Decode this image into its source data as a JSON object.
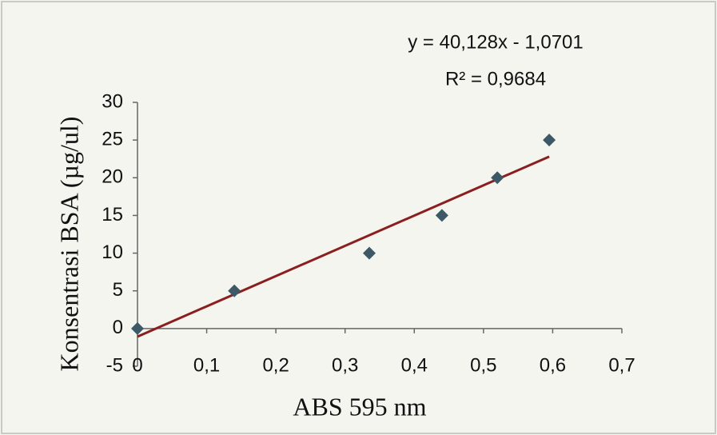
{
  "chart_data": {
    "type": "scatter",
    "x_label": "ABS 595 nm",
    "y_label": "Konsentrasi BSA (µg/ul)",
    "series": [
      {
        "color": "#3d5867",
        "x": [
          0,
          0.14,
          0.335,
          0.44,
          0.52,
          0.595
        ],
        "values": [
          0,
          5,
          10,
          15,
          20,
          25
        ]
      }
    ],
    "trendline": {
      "slope": 40.128,
      "intercept": -1.0701,
      "xlim": [
        0,
        0.595
      ],
      "color": "#8b1e1e",
      "equation": "y = 40,128x - 1,0701",
      "r2_label": "R² = 0,9684"
    },
    "xlim": [
      0,
      0.7
    ],
    "xticks": [
      0,
      {
        "value": 0.1,
        "label": "0,1"
      },
      {
        "value": 0.2,
        "label": "0,2"
      },
      {
        "value": 0.3,
        "label": "0,3"
      },
      {
        "value": 0.4,
        "label": "0,4"
      },
      {
        "value": 0.5,
        "label": "0,5"
      },
      {
        "value": 0.6,
        "label": "0,6"
      },
      {
        "value": 0.7,
        "label": "0,7"
      }
    ],
    "ylim": [
      -5,
      30
    ],
    "yticks": [
      -5,
      0,
      5,
      10,
      15,
      20,
      25,
      30
    ],
    "grid": false
  }
}
